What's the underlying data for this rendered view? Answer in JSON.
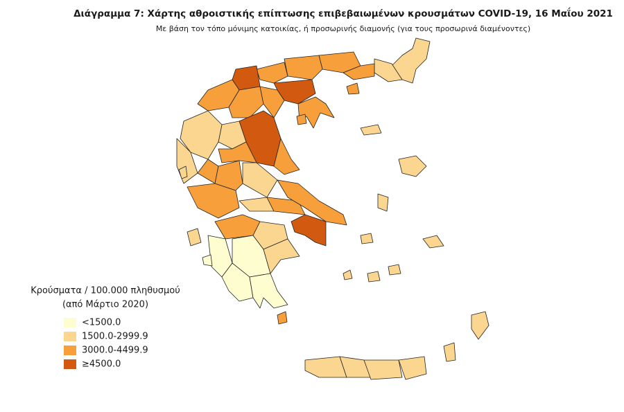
{
  "title": "Διάγραμμα 7: Χάρτης αθροιστικής επίπτωσης επιβεβαιωμένων κρουσμάτων COVID-19, 16 Μαΐου 2021",
  "subtitle": "Με βάση τον τόπο μόνιμης κατοικίας, ή προσωρινής διαμονής (για τους προσωρινά διαμένοντες)",
  "legend": {
    "title": [
      "Κρούσματα / 100.000 πληθυσμού",
      "(από Μάρτιο 2020)"
    ],
    "items": [
      {
        "label": "<1500.0",
        "color": "#fefdd0"
      },
      {
        "label": "1500.0-2999.9",
        "color": "#fbd690"
      },
      {
        "label": "3000.0-4499.9",
        "color": "#f7a03b"
      },
      {
        "label": "≥4500.0",
        "color": "#d25a10"
      }
    ]
  }
}
